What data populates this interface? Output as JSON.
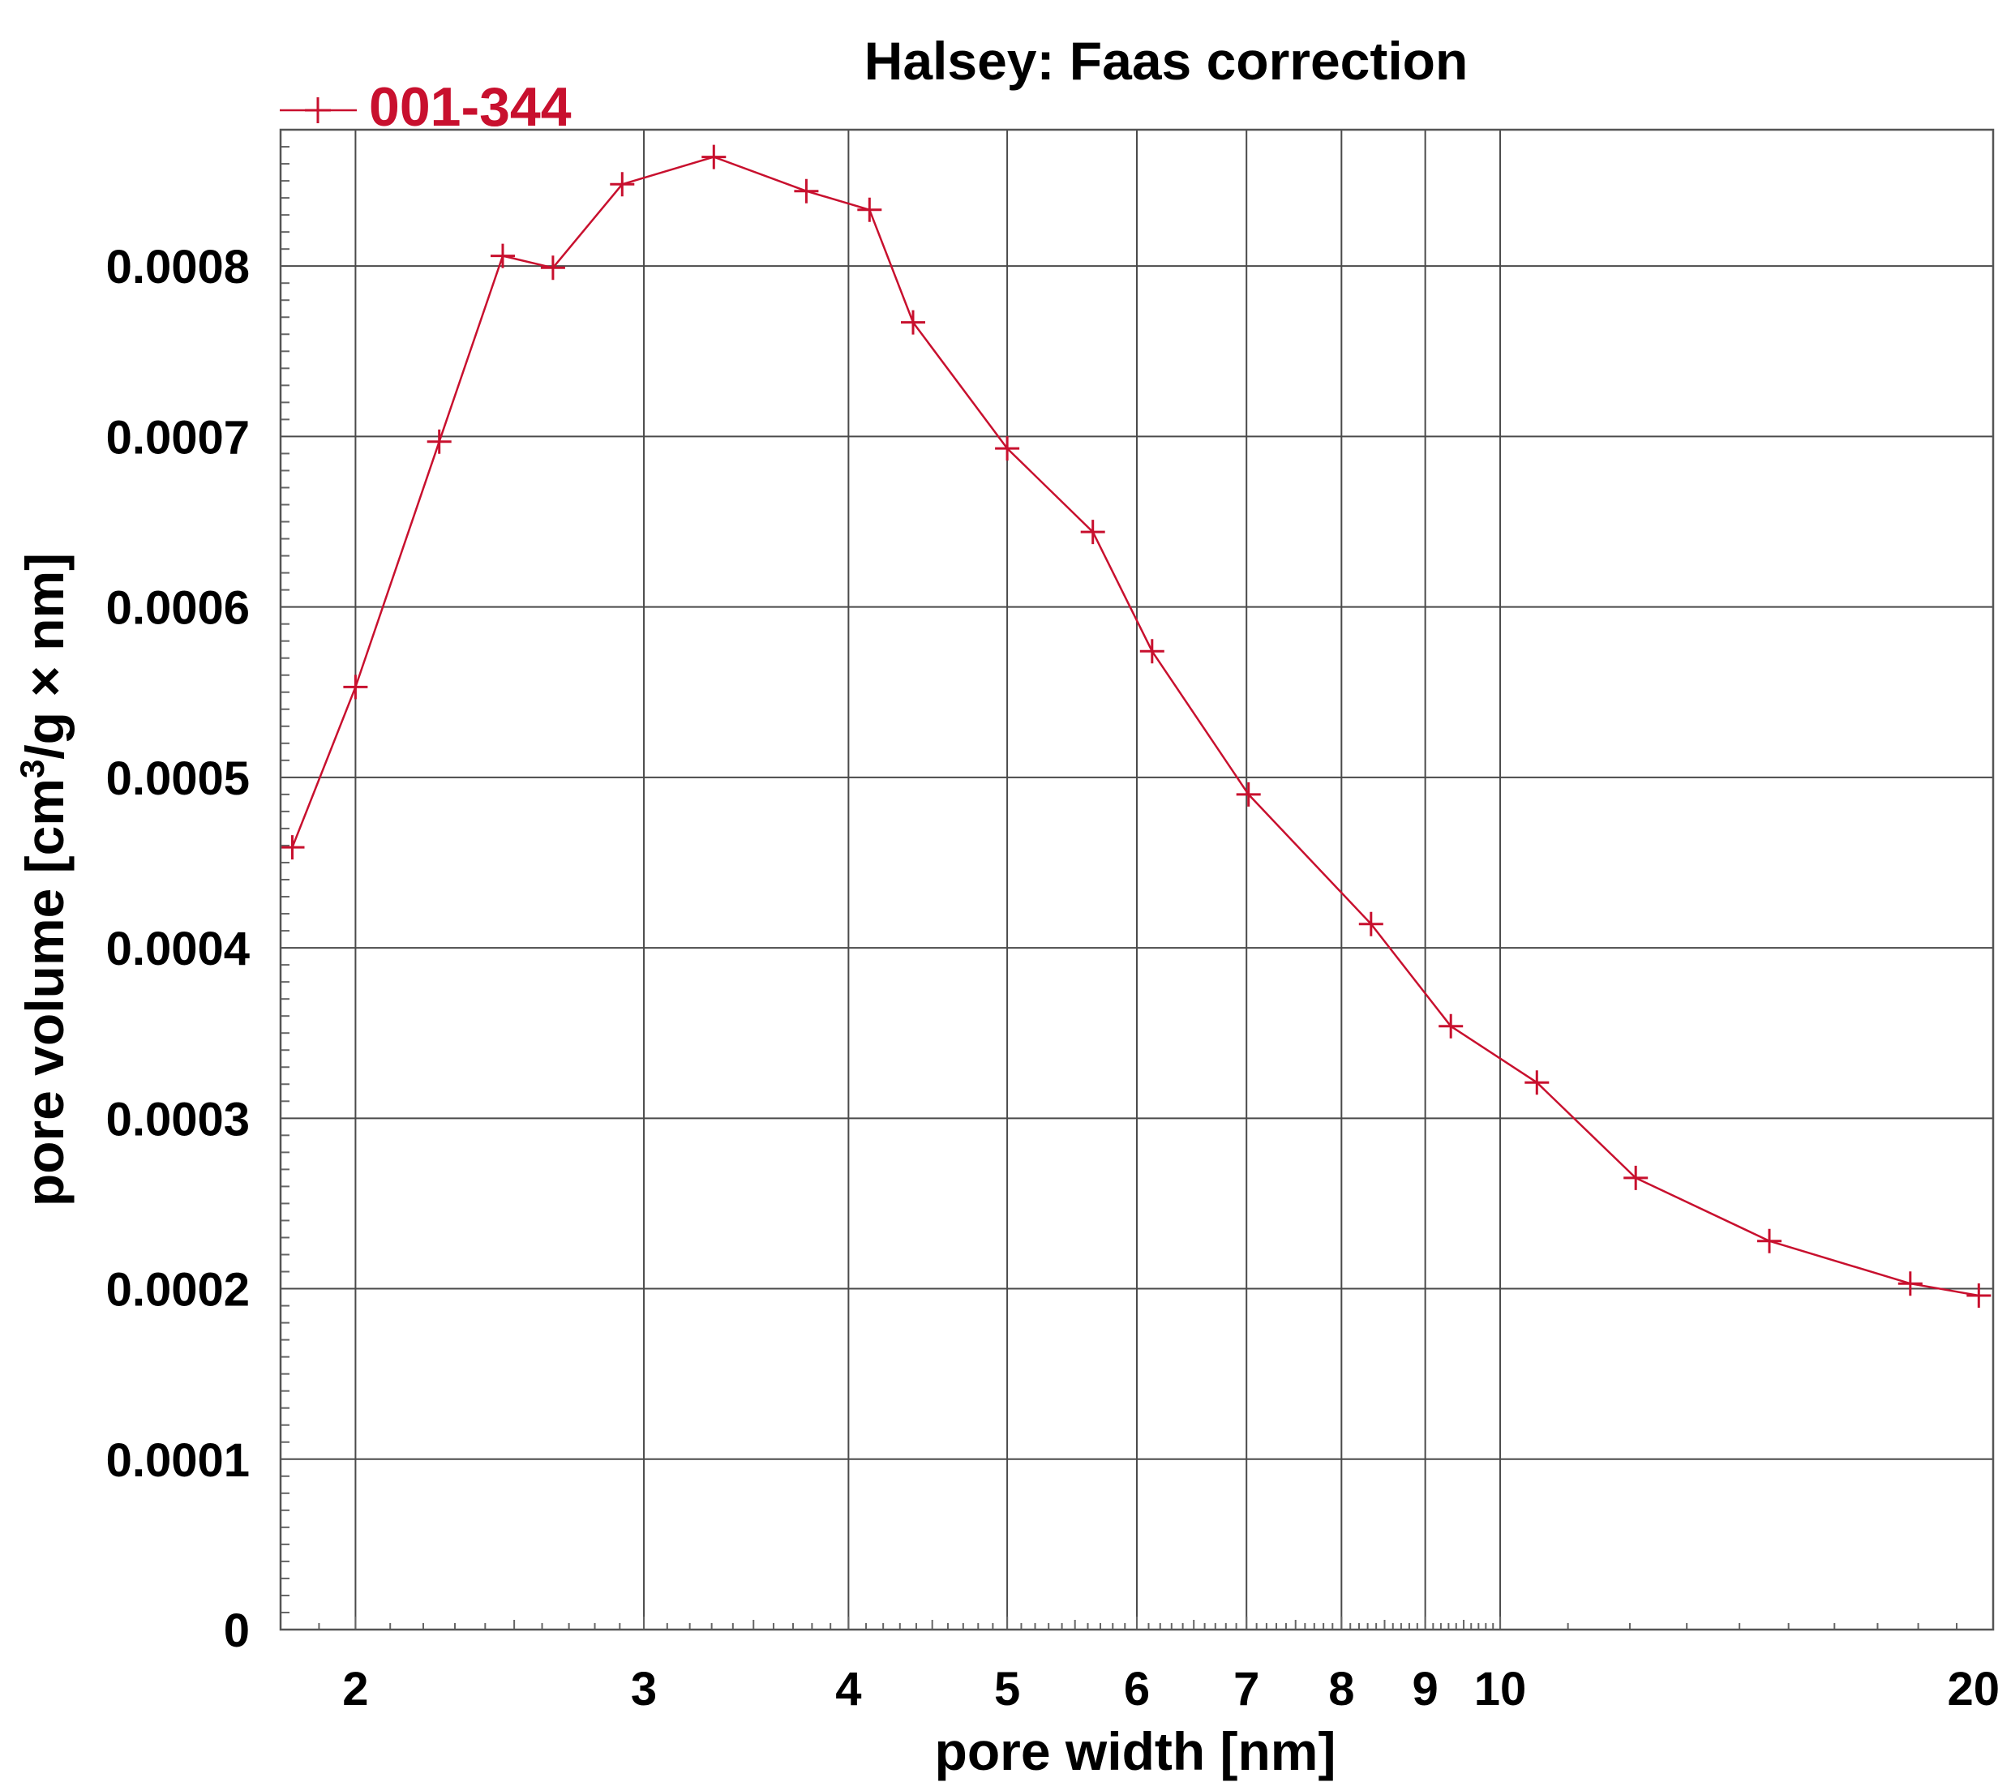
{
  "chart_data": {
    "type": "line",
    "title": "Halsey: Faas correction",
    "xlabel": "pore width [nm]",
    "ylabel": "pore volume [cm³/g × nm]",
    "x_scale": "log",
    "xlim": [
      1.8,
      20
    ],
    "ylim": [
      0,
      0.00088
    ],
    "grid": true,
    "legend_position": "top-left",
    "x_ticks": [
      2,
      3,
      4,
      5,
      6,
      7,
      8,
      9,
      10,
      20
    ],
    "x_tick_labels": [
      "2",
      "3",
      "4",
      "5",
      "6",
      "7",
      "8",
      "9",
      "10",
      "20"
    ],
    "y_ticks": [
      0,
      0.0001,
      0.0002,
      0.0003,
      0.0004,
      0.0005,
      0.0006,
      0.0007,
      0.0008
    ],
    "y_tick_labels": [
      "0",
      "0.0001",
      "0.0002",
      "0.0003",
      "0.0004",
      "0.0005",
      "0.0006",
      "0.0007",
      "0.0008"
    ],
    "series": [
      {
        "name": "001-344",
        "color": "#c8102e",
        "marker": "plus",
        "x": [
          1.83,
          2.0,
          2.25,
          2.46,
          2.64,
          2.91,
          3.31,
          3.77,
          4.12,
          4.38,
          5.0,
          5.64,
          6.13,
          7.02,
          8.34,
          9.33,
          10.53,
          12.1,
          14.6,
          17.8,
          19.6
        ],
        "y": [
          0.000459,
          0.000553,
          0.000697,
          0.000806,
          0.000799,
          0.000848,
          0.000864,
          0.000844,
          0.000833,
          0.000767,
          0.000693,
          0.000644,
          0.000574,
          0.00049,
          0.000414,
          0.000354,
          0.000321,
          0.000265,
          0.000228,
          0.000203,
          0.000196
        ]
      }
    ]
  }
}
